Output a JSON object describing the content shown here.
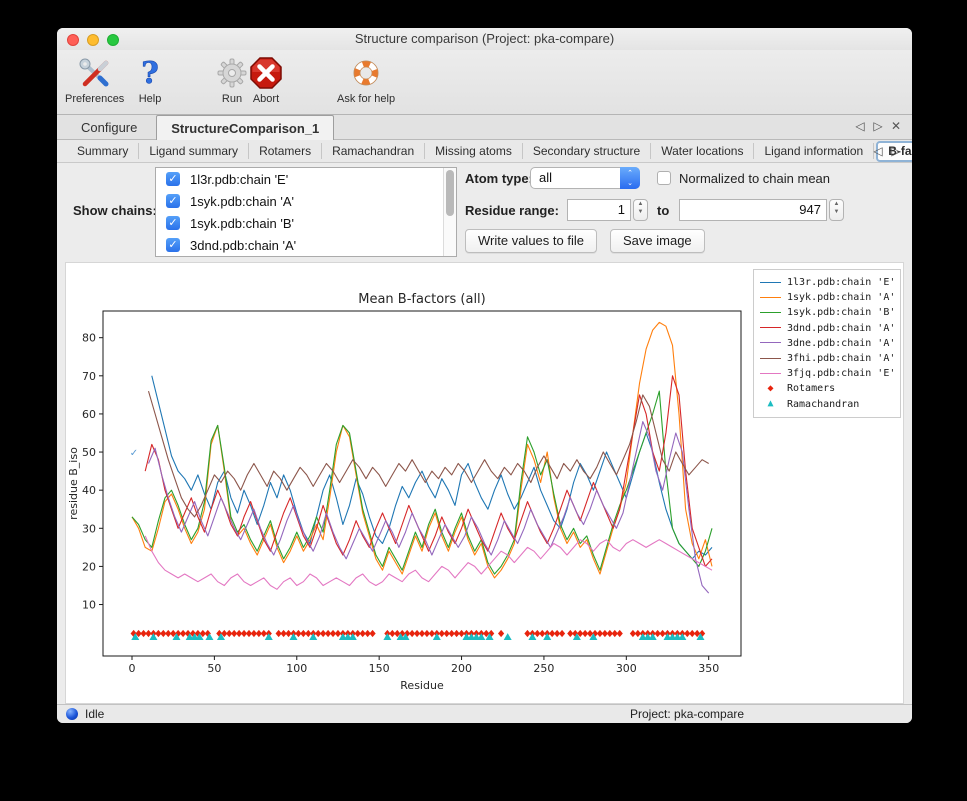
{
  "window": {
    "title": "Structure comparison (Project: pka-compare)"
  },
  "toolbar": {
    "items": [
      {
        "label": "Preferences",
        "icon": "preferences-tools-icon",
        "x": 8
      },
      {
        "label": "Help",
        "icon": "help-question-icon",
        "x": 76
      },
      {
        "label": "Run",
        "icon": "run-gear-icon",
        "x": 158
      },
      {
        "label": "Abort",
        "icon": "abort-stop-icon",
        "x": 192
      },
      {
        "label": "Ask for help",
        "icon": "lifebuoy-icon",
        "x": 280
      }
    ]
  },
  "tabs": {
    "main": [
      {
        "label": "Configure",
        "active": false
      },
      {
        "label": "StructureComparison_1",
        "active": true
      }
    ],
    "nav": {
      "prev": "◁",
      "next": "▷",
      "close": "✕"
    },
    "sub": [
      {
        "label": "Summary",
        "active": false
      },
      {
        "label": "Ligand summary",
        "active": false
      },
      {
        "label": "Rotamers",
        "active": false
      },
      {
        "label": "Ramachandran",
        "active": false
      },
      {
        "label": "Missing atoms",
        "active": false
      },
      {
        "label": "Secondary structure",
        "active": false
      },
      {
        "label": "Water locations",
        "active": false
      },
      {
        "label": "Ligand information",
        "active": false
      },
      {
        "label": "B-factors",
        "active": true
      }
    ]
  },
  "controls": {
    "show_chains_label": "Show chains:",
    "chains": [
      {
        "label": "1l3r.pdb:chain 'E'",
        "checked": true
      },
      {
        "label": "1syk.pdb:chain 'A'",
        "checked": true
      },
      {
        "label": "1syk.pdb:chain 'B'",
        "checked": true
      },
      {
        "label": "3dnd.pdb:chain 'A'",
        "checked": true
      }
    ],
    "check_glyph": "✓",
    "atom_type_label": "Atom type:",
    "atom_type_value": "all",
    "combo_up": "⌃",
    "combo_down": "⌄",
    "normalized_label": "Normalized to chain mean",
    "normalized_checked": false,
    "residue_range_label": "Residue range:",
    "residue_from": "1",
    "to_word": "to",
    "residue_to": "947",
    "stepper_up": "▲",
    "stepper_down": "▼",
    "write_button": "Write values to file",
    "save_button": "Save image"
  },
  "statusbar": {
    "status": "Idle",
    "project": "Project: pka-compare"
  },
  "chart_data": {
    "type": "line",
    "title": "Mean B-factors (all)",
    "xlabel": "Residue",
    "ylabel": "residue B_iso",
    "xlim": [
      -17.6,
      369.6
    ],
    "ylim": [
      -3.5,
      87
    ],
    "x_ticks": [
      0,
      50,
      100,
      150,
      200,
      250,
      300,
      350
    ],
    "y_ticks": [
      10,
      20,
      30,
      40,
      50,
      60,
      70,
      80
    ],
    "grid": false,
    "legend_position": "outside-top-right",
    "series": [
      {
        "name": "1l3r.pdb:chain 'E'",
        "color": "#1f77b4",
        "x_start": 12,
        "x_step": 4,
        "values": [
          70,
          63,
          56,
          49,
          45,
          43,
          40,
          44,
          39,
          35,
          42,
          45,
          38,
          34,
          40,
          36,
          31,
          36,
          42,
          38,
          44,
          40,
          34,
          29,
          26,
          33,
          40,
          44,
          38,
          31,
          36,
          43,
          39,
          33,
          28,
          26,
          30,
          36,
          41,
          38,
          42,
          45,
          41,
          38,
          43,
          40,
          36,
          44,
          47,
          42,
          38,
          35,
          40,
          44,
          39,
          35,
          38,
          42,
          46,
          40,
          36,
          32,
          30,
          35,
          42,
          47,
          44,
          40,
          45,
          50,
          46,
          42,
          38,
          44,
          50,
          55,
          50,
          42,
          35,
          30,
          26,
          24,
          22,
          24,
          23,
          25
        ]
      },
      {
        "name": "1syk.pdb:chain 'A'",
        "color": "#ff7f0e",
        "x_start": 0,
        "x_step": 4,
        "values": [
          33,
          30,
          25,
          24,
          30,
          37,
          39,
          35,
          30,
          26,
          29,
          35,
          52,
          57,
          45,
          32,
          28,
          30,
          26,
          23,
          27,
          31,
          25,
          21,
          24,
          28,
          24,
          27,
          31,
          27,
          38,
          50,
          57,
          54,
          44,
          34,
          28,
          22,
          19,
          24,
          21,
          18,
          23,
          28,
          24,
          30,
          34,
          28,
          24,
          29,
          33,
          27,
          23,
          26,
          20,
          17,
          19,
          22,
          26,
          40,
          52,
          48,
          42,
          50,
          38,
          30,
          26,
          29,
          25,
          27,
          22,
          18,
          24,
          30,
          35,
          42,
          55,
          68,
          77,
          82,
          84,
          83,
          78,
          60,
          35,
          26,
          22,
          27,
          20
        ]
      },
      {
        "name": "1syk.pdb:chain 'B'",
        "color": "#2ca02c",
        "x_start": 0,
        "x_step": 4,
        "values": [
          33,
          31,
          27,
          25,
          32,
          38,
          40,
          36,
          31,
          27,
          30,
          37,
          53,
          57,
          46,
          33,
          29,
          31,
          27,
          24,
          28,
          32,
          26,
          22,
          25,
          29,
          25,
          28,
          33,
          29,
          40,
          52,
          57,
          55,
          45,
          35,
          29,
          23,
          20,
          25,
          22,
          19,
          24,
          29,
          25,
          31,
          35,
          29,
          25,
          30,
          34,
          28,
          24,
          27,
          21,
          18,
          20,
          23,
          27,
          42,
          54,
          50,
          44,
          48,
          39,
          31,
          27,
          30,
          26,
          28,
          23,
          19,
          25,
          31,
          36,
          40,
          45,
          50,
          55,
          60,
          66,
          45,
          30,
          26,
          24,
          22,
          20,
          24,
          30
        ]
      },
      {
        "name": "3dnd.pdb:chain 'A'",
        "color": "#d62728",
        "x_start": 8,
        "x_step": 4,
        "values": [
          45,
          52,
          48,
          40,
          35,
          30,
          34,
          38,
          33,
          29,
          35,
          40,
          36,
          31,
          28,
          33,
          37,
          32,
          27,
          24,
          29,
          34,
          38,
          33,
          28,
          25,
          30,
          36,
          31,
          26,
          23,
          27,
          32,
          28,
          25,
          30,
          34,
          30,
          26,
          31,
          36,
          32,
          28,
          24,
          28,
          33,
          29,
          26,
          30,
          35,
          31,
          27,
          24,
          29,
          34,
          30,
          27,
          32,
          37,
          33,
          29,
          26,
          30,
          35,
          40,
          36,
          32,
          37,
          42,
          38,
          34,
          30,
          35,
          45,
          55,
          65,
          60,
          50,
          45,
          55,
          70,
          65,
          45,
          30,
          25,
          20,
          22
        ]
      },
      {
        "name": "3dne.pdb:chain 'A'",
        "color": "#9467bd",
        "x_start": 10,
        "x_step": 4,
        "values": [
          47,
          51,
          44,
          38,
          33,
          29,
          33,
          37,
          32,
          28,
          33,
          38,
          34,
          30,
          27,
          31,
          35,
          30,
          26,
          23,
          27,
          32,
          36,
          31,
          27,
          24,
          28,
          34,
          29,
          25,
          22,
          26,
          30,
          27,
          24,
          28,
          32,
          29,
          25,
          29,
          34,
          30,
          27,
          23,
          27,
          31,
          28,
          25,
          28,
          33,
          30,
          26,
          23,
          27,
          32,
          29,
          26,
          30,
          35,
          31,
          28,
          25,
          29,
          33,
          38,
          34,
          31,
          35,
          40,
          36,
          33,
          30,
          34,
          42,
          50,
          58,
          54,
          45,
          40,
          48,
          55,
          50,
          35,
          22,
          15,
          13
        ]
      },
      {
        "name": "3fhi.pdb:chain 'A'",
        "color": "#8c564b",
        "x_start": 10,
        "x_step": 4,
        "values": [
          66,
          60,
          54,
          48,
          43,
          38,
          35,
          33,
          36,
          40,
          44,
          42,
          45,
          43,
          40,
          44,
          47,
          44,
          41,
          45,
          43,
          40,
          43,
          46,
          44,
          41,
          44,
          47,
          45,
          42,
          45,
          48,
          46,
          43,
          46,
          44,
          41,
          44,
          47,
          45,
          48,
          45,
          42,
          45,
          43,
          46,
          44,
          47,
          45,
          42,
          45,
          48,
          45,
          43,
          46,
          44,
          47,
          45,
          42,
          46,
          49,
          46,
          43,
          47,
          45,
          48,
          45,
          43,
          46,
          50,
          47,
          44,
          48,
          52,
          58,
          65,
          62,
          55,
          48,
          45,
          50,
          47,
          44,
          46,
          48,
          47
        ]
      },
      {
        "name": "3fjq.pdb:chain 'E'",
        "color": "#e377c2",
        "x_start": 8,
        "x_step": 4,
        "values": [
          28,
          24,
          21,
          19,
          18,
          17,
          18,
          17,
          16,
          17,
          18,
          16,
          15,
          17,
          18,
          16,
          15,
          16,
          17,
          15,
          14,
          16,
          17,
          15,
          16,
          18,
          17,
          15,
          16,
          17,
          16,
          15,
          17,
          18,
          16,
          15,
          16,
          18,
          17,
          16,
          18,
          19,
          17,
          16,
          18,
          20,
          19,
          17,
          19,
          21,
          20,
          18,
          20,
          22,
          24,
          23,
          21,
          23,
          25,
          24,
          22,
          24,
          26,
          25,
          23,
          25,
          27,
          26,
          24,
          26,
          27,
          25,
          24,
          26,
          27,
          26,
          25,
          26,
          27,
          26,
          25,
          24,
          23,
          22,
          21,
          20,
          19
        ]
      }
    ],
    "markers": [
      {
        "name": "Rotamers",
        "color": "#e8240e",
        "shape": "diamond",
        "y": 2.4,
        "x": [
          1,
          4,
          7,
          10,
          13,
          16,
          19,
          22,
          25,
          28,
          31,
          34,
          37,
          40,
          43,
          46,
          53,
          56,
          59,
          62,
          65,
          68,
          71,
          74,
          77,
          80,
          83,
          89,
          92,
          95,
          98,
          101,
          104,
          107,
          110,
          113,
          116,
          119,
          122,
          125,
          128,
          131,
          134,
          137,
          140,
          143,
          146,
          155,
          158,
          161,
          164,
          167,
          170,
          173,
          176,
          179,
          182,
          185,
          188,
          191,
          194,
          197,
          200,
          203,
          206,
          209,
          212,
          215,
          218,
          224,
          240,
          243,
          246,
          249,
          252,
          255,
          258,
          261,
          266,
          269,
          272,
          275,
          278,
          281,
          284,
          287,
          290,
          293,
          296,
          304,
          307,
          310,
          313,
          316,
          319,
          322,
          325,
          328,
          331,
          334,
          337,
          340,
          343,
          346
        ]
      },
      {
        "name": "Ramachandran",
        "color": "#1cbdc2",
        "shape": "triangle",
        "y": 1.5,
        "x": [
          2,
          13,
          27,
          35,
          38,
          41,
          47,
          54,
          83,
          98,
          110,
          128,
          131,
          134,
          155,
          163,
          166,
          185,
          203,
          206,
          209,
          212,
          217,
          228,
          243,
          252,
          270,
          280,
          310,
          313,
          316,
          325,
          328,
          331,
          334,
          345
        ]
      }
    ],
    "annotations": [
      {
        "name": "check-artifact",
        "glyph": "✓",
        "x": 1.2,
        "y": 49,
        "color": "#5a9bd4"
      }
    ]
  }
}
